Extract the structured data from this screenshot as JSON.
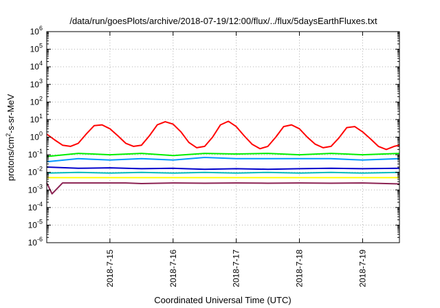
{
  "chart_data": {
    "type": "line",
    "title": "/data/run/goesPlots/archive/2018-07-19/12:00/flux/../flux/5daysEarthFluxes.txt",
    "xlabel": "Coordinated Universal Time (UTC)",
    "ylabel": "protons/cm²-s-sr-MeV",
    "ylabel_parts": {
      "pre": "protons/cm",
      "sup": "2",
      "post": "-s-sr-MeV"
    },
    "yscale": "log",
    "ylim": [
      1e-06,
      1000000.0
    ],
    "y_ticks": [
      {
        "v": 1e-06,
        "base": "10",
        "exp": "-6"
      },
      {
        "v": 1e-05,
        "base": "10",
        "exp": "-5"
      },
      {
        "v": 0.0001,
        "base": "10",
        "exp": "-4"
      },
      {
        "v": 0.001,
        "base": "10",
        "exp": "-3"
      },
      {
        "v": 0.01,
        "base": "10",
        "exp": "-2"
      },
      {
        "v": 0.1,
        "base": "10",
        "exp": "-1"
      },
      {
        "v": 1,
        "base": "10",
        "exp": "0"
      },
      {
        "v": 10,
        "base": "10",
        "exp": "1"
      },
      {
        "v": 100,
        "base": "10",
        "exp": "2"
      },
      {
        "v": 1000,
        "base": "10",
        "exp": "3"
      },
      {
        "v": 10000,
        "base": "10",
        "exp": "4"
      },
      {
        "v": 100000,
        "base": "10",
        "exp": "5"
      },
      {
        "v": 1000000,
        "base": "10",
        "exp": "6"
      }
    ],
    "xlim": [
      "2018-07-14T00:00",
      "2018-07-19T14:00"
    ],
    "x_ticks": [
      {
        "t": "2018-07-15T00:00",
        "label": "2018-7-15"
      },
      {
        "t": "2018-07-16T00:00",
        "label": "2018-7-16"
      },
      {
        "t": "2018-07-17T00:00",
        "label": "2018-7-17"
      },
      {
        "t": "2018-07-18T00:00",
        "label": "2018-7-18"
      },
      {
        "t": "2018-07-19T00:00",
        "label": "2018-7-19"
      }
    ],
    "grid": true,
    "legend": "none",
    "series": [
      {
        "color": "#ff0000",
        "points": [
          [
            "2018-07-14T00:00",
            1.5
          ],
          [
            "2018-07-14T03:00",
            0.7
          ],
          [
            "2018-07-14T06:00",
            0.35
          ],
          [
            "2018-07-14T09:00",
            0.3
          ],
          [
            "2018-07-14T12:00",
            0.45
          ],
          [
            "2018-07-14T15:00",
            1.5
          ],
          [
            "2018-07-14T18:00",
            4.5
          ],
          [
            "2018-07-14T21:00",
            5.0
          ],
          [
            "2018-07-15T00:00",
            3.0
          ],
          [
            "2018-07-15T03:00",
            1.2
          ],
          [
            "2018-07-15T06:00",
            0.45
          ],
          [
            "2018-07-15T09:00",
            0.3
          ],
          [
            "2018-07-15T12:00",
            0.35
          ],
          [
            "2018-07-15T15:00",
            1.2
          ],
          [
            "2018-07-15T18:00",
            5.0
          ],
          [
            "2018-07-15T21:00",
            7.5
          ],
          [
            "2018-07-16T00:00",
            5.5
          ],
          [
            "2018-07-16T03:00",
            2.0
          ],
          [
            "2018-07-16T06:00",
            0.5
          ],
          [
            "2018-07-16T09:00",
            0.25
          ],
          [
            "2018-07-16T12:00",
            0.3
          ],
          [
            "2018-07-16T15:00",
            1.0
          ],
          [
            "2018-07-16T18:00",
            5.0
          ],
          [
            "2018-07-16T21:00",
            8.0
          ],
          [
            "2018-07-17T00:00",
            4.0
          ],
          [
            "2018-07-17T03:00",
            1.2
          ],
          [
            "2018-07-17T06:00",
            0.4
          ],
          [
            "2018-07-17T09:00",
            0.22
          ],
          [
            "2018-07-17T12:00",
            0.3
          ],
          [
            "2018-07-17T15:00",
            1.0
          ],
          [
            "2018-07-17T18:00",
            4.0
          ],
          [
            "2018-07-17T21:00",
            5.0
          ],
          [
            "2018-07-18T00:00",
            3.0
          ],
          [
            "2018-07-18T03:00",
            1.0
          ],
          [
            "2018-07-18T06:00",
            0.4
          ],
          [
            "2018-07-18T09:00",
            0.25
          ],
          [
            "2018-07-18T12:00",
            0.3
          ],
          [
            "2018-07-18T15:00",
            0.9
          ],
          [
            "2018-07-18T18:00",
            3.5
          ],
          [
            "2018-07-18T21:00",
            4.0
          ],
          [
            "2018-07-19T00:00",
            2.0
          ],
          [
            "2018-07-19T03:00",
            0.8
          ],
          [
            "2018-07-19T06:00",
            0.3
          ],
          [
            "2018-07-19T09:00",
            0.2
          ],
          [
            "2018-07-19T12:00",
            0.3
          ],
          [
            "2018-07-19T14:00",
            0.35
          ]
        ]
      },
      {
        "color": "#00ee00",
        "points": [
          [
            "2018-07-14T00:00",
            0.08
          ],
          [
            "2018-07-14T12:00",
            0.12
          ],
          [
            "2018-07-15T00:00",
            0.1
          ],
          [
            "2018-07-15T12:00",
            0.12
          ],
          [
            "2018-07-16T00:00",
            0.09
          ],
          [
            "2018-07-16T12:00",
            0.12
          ],
          [
            "2018-07-17T00:00",
            0.11
          ],
          [
            "2018-07-17T12:00",
            0.12
          ],
          [
            "2018-07-18T00:00",
            0.1
          ],
          [
            "2018-07-18T12:00",
            0.12
          ],
          [
            "2018-07-19T00:00",
            0.1
          ],
          [
            "2018-07-19T14:00",
            0.12
          ]
        ]
      },
      {
        "color": "#0099ff",
        "points": [
          [
            "2018-07-14T00:00",
            0.04
          ],
          [
            "2018-07-14T12:00",
            0.06
          ],
          [
            "2018-07-15T00:00",
            0.05
          ],
          [
            "2018-07-15T12:00",
            0.06
          ],
          [
            "2018-07-16T00:00",
            0.05
          ],
          [
            "2018-07-16T12:00",
            0.07
          ],
          [
            "2018-07-17T00:00",
            0.06
          ],
          [
            "2018-07-17T12:00",
            0.06
          ],
          [
            "2018-07-18T00:00",
            0.06
          ],
          [
            "2018-07-18T12:00",
            0.06
          ],
          [
            "2018-07-19T00:00",
            0.05
          ],
          [
            "2018-07-19T14:00",
            0.06
          ]
        ]
      },
      {
        "color": "#0000cc",
        "points": [
          [
            "2018-07-14T00:00",
            0.02
          ],
          [
            "2018-07-14T12:00",
            0.017
          ],
          [
            "2018-07-15T00:00",
            0.018
          ],
          [
            "2018-07-15T12:00",
            0.016
          ],
          [
            "2018-07-16T00:00",
            0.017
          ],
          [
            "2018-07-16T12:00",
            0.015
          ],
          [
            "2018-07-17T00:00",
            0.016
          ],
          [
            "2018-07-17T12:00",
            0.015
          ],
          [
            "2018-07-18T00:00",
            0.016
          ],
          [
            "2018-07-18T12:00",
            0.017
          ],
          [
            "2018-07-19T00:00",
            0.016
          ],
          [
            "2018-07-19T14:00",
            0.017
          ]
        ]
      },
      {
        "color": "#00bbbb",
        "points": [
          [
            "2018-07-14T00:00",
            0.009
          ],
          [
            "2018-07-14T12:00",
            0.01
          ],
          [
            "2018-07-15T00:00",
            0.009
          ],
          [
            "2018-07-15T12:00",
            0.01
          ],
          [
            "2018-07-16T00:00",
            0.009
          ],
          [
            "2018-07-16T12:00",
            0.01
          ],
          [
            "2018-07-17T00:00",
            0.009
          ],
          [
            "2018-07-17T12:00",
            0.01
          ],
          [
            "2018-07-18T00:00",
            0.009
          ],
          [
            "2018-07-18T12:00",
            0.01
          ],
          [
            "2018-07-19T00:00",
            0.009
          ],
          [
            "2018-07-19T14:00",
            0.01
          ]
        ]
      },
      {
        "color": "#ffff00",
        "points": [
          [
            "2018-07-14T00:00",
            0.005
          ],
          [
            "2018-07-15T00:00",
            0.005
          ],
          [
            "2018-07-16T00:00",
            0.005
          ],
          [
            "2018-07-17T00:00",
            0.005
          ],
          [
            "2018-07-18T00:00",
            0.005
          ],
          [
            "2018-07-19T00:00",
            0.005
          ],
          [
            "2018-07-19T14:00",
            0.005
          ]
        ]
      },
      {
        "color": "#8b2252",
        "points": [
          [
            "2018-07-14T00:00",
            0.0025
          ],
          [
            "2018-07-14T02:00",
            0.0006
          ],
          [
            "2018-07-14T06:00",
            0.0025
          ],
          [
            "2018-07-15T00:00",
            0.0025
          ],
          [
            "2018-07-15T06:00",
            0.0025
          ],
          [
            "2018-07-15T12:00",
            0.0023
          ],
          [
            "2018-07-16T00:00",
            0.0025
          ],
          [
            "2018-07-16T12:00",
            0.0024
          ],
          [
            "2018-07-17T00:00",
            0.0025
          ],
          [
            "2018-07-17T12:00",
            0.0024
          ],
          [
            "2018-07-18T00:00",
            0.0025
          ],
          [
            "2018-07-18T12:00",
            0.0024
          ],
          [
            "2018-07-19T00:00",
            0.0025
          ],
          [
            "2018-07-19T14:00",
            0.0022
          ]
        ]
      }
    ]
  }
}
